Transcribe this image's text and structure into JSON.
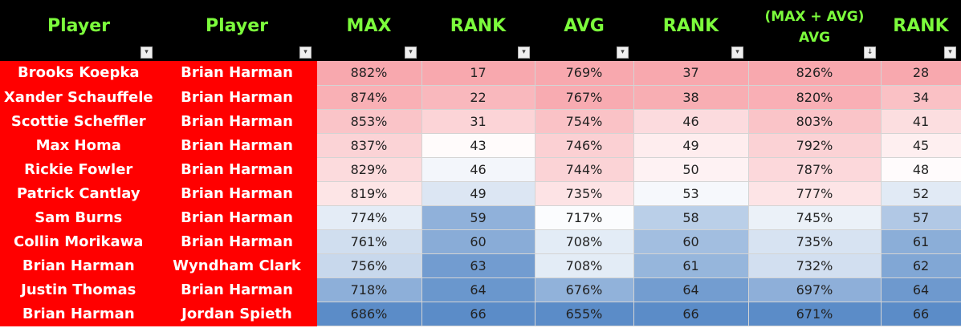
{
  "headers": [
    {
      "label": "Player",
      "name": "header-player-1",
      "filter": "▾"
    },
    {
      "label": "Player",
      "name": "header-player-2",
      "filter": "▾"
    },
    {
      "label": "MAX",
      "name": "header-max",
      "filter": "▾"
    },
    {
      "label": "RANK",
      "name": "header-rank-max",
      "filter": "▾"
    },
    {
      "label": "AVG",
      "name": "header-avg",
      "filter": "▾"
    },
    {
      "label": "RANK",
      "name": "header-rank-avg",
      "filter": "▾"
    },
    {
      "label": "(MAX + AVG)\nAVG",
      "name": "header-max-avg-avg",
      "filter": "↓"
    },
    {
      "label": "RANK",
      "name": "header-rank-combined",
      "filter": "▾"
    }
  ],
  "rows": [
    {
      "p1": "Brooks Koepka",
      "p2": "Brian Harman",
      "max": "882%",
      "max_rank": "17",
      "avg": "769%",
      "avg_rank": "37",
      "combo": "826%",
      "combo_rank": "28"
    },
    {
      "p1": "Xander Schauffele",
      "p2": "Brian Harman",
      "max": "874%",
      "max_rank": "22",
      "avg": "767%",
      "avg_rank": "38",
      "combo": "820%",
      "combo_rank": "34"
    },
    {
      "p1": "Scottie Scheffler",
      "p2": "Brian Harman",
      "max": "853%",
      "max_rank": "31",
      "avg": "754%",
      "avg_rank": "46",
      "combo": "803%",
      "combo_rank": "41"
    },
    {
      "p1": "Max Homa",
      "p2": "Brian Harman",
      "max": "837%",
      "max_rank": "43",
      "avg": "746%",
      "avg_rank": "49",
      "combo": "792%",
      "combo_rank": "45"
    },
    {
      "p1": "Rickie Fowler",
      "p2": "Brian Harman",
      "max": "829%",
      "max_rank": "46",
      "avg": "744%",
      "avg_rank": "50",
      "combo": "787%",
      "combo_rank": "48"
    },
    {
      "p1": "Patrick Cantlay",
      "p2": "Brian Harman",
      "max": "819%",
      "max_rank": "49",
      "avg": "735%",
      "avg_rank": "53",
      "combo": "777%",
      "combo_rank": "52"
    },
    {
      "p1": "Sam Burns",
      "p2": "Brian Harman",
      "max": "774%",
      "max_rank": "59",
      "avg": "717%",
      "avg_rank": "58",
      "combo": "745%",
      "combo_rank": "57"
    },
    {
      "p1": "Collin Morikawa",
      "p2": "Brian Harman",
      "max": "761%",
      "max_rank": "60",
      "avg": "708%",
      "avg_rank": "60",
      "combo": "735%",
      "combo_rank": "61"
    },
    {
      "p1": "Brian Harman",
      "p2": "Wyndham Clark",
      "max": "756%",
      "max_rank": "63",
      "avg": "708%",
      "avg_rank": "61",
      "combo": "732%",
      "combo_rank": "62"
    },
    {
      "p1": "Justin Thomas",
      "p2": "Brian Harman",
      "max": "718%",
      "max_rank": "64",
      "avg": "676%",
      "avg_rank": "64",
      "combo": "697%",
      "combo_rank": "64"
    },
    {
      "p1": "Brian Harman",
      "p2": "Jordan Spieth",
      "max": "686%",
      "max_rank": "66",
      "avg": "655%",
      "avg_rank": "66",
      "combo": "671%",
      "combo_rank": "66"
    }
  ],
  "colors": {
    "header_bg": "#000000",
    "header_text": "#7cfc3c",
    "name_bg": "#ff0000",
    "name_text": "#ffffff",
    "scale_high": "#f8a8ae",
    "scale_mid": "#ffffff",
    "scale_low": "#5b8cc8"
  }
}
